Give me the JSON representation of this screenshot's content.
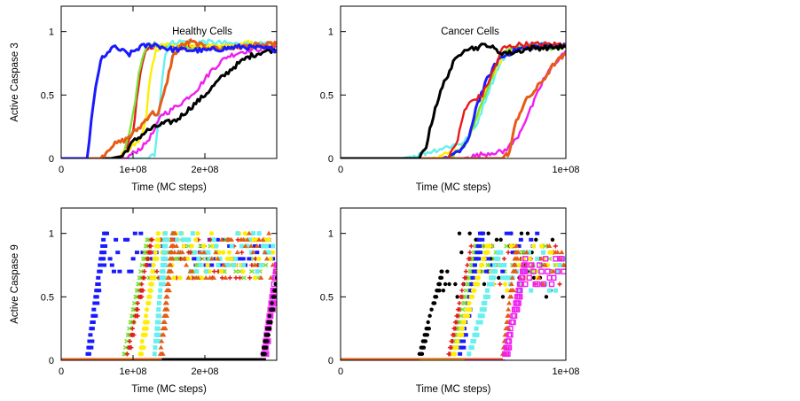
{
  "figure": {
    "description": "Active Caspase 3 and Active Caspase 9 versus time for healthy and cancer cells"
  },
  "chart_data": [
    {
      "id": "healthy-caspase3",
      "type": "line",
      "title": "Healthy Cells",
      "xlabel": "Time (MC steps)",
      "ylabel": "Active Caspase 3",
      "xlim": [
        0,
        300000000
      ],
      "ylim": [
        0,
        1.2
      ],
      "xticks": [
        {
          "value": 0,
          "label": "0"
        },
        {
          "value": 100000000,
          "label": "1e+08"
        },
        {
          "value": 200000000,
          "label": "2e+08"
        }
      ],
      "yticks": [
        {
          "value": 0,
          "label": "0"
        },
        {
          "value": 0.5,
          "label": "0.5"
        },
        {
          "value": 1,
          "label": "1"
        }
      ],
      "grid": false,
      "series": [
        {
          "name": "red",
          "color": "#e8191b",
          "x": [
            0,
            0.85,
            0.92,
            1.0,
            1.05,
            1.1,
            1.15,
            1.2,
            1.3,
            1.5,
            2.0,
            2.5,
            3.0
          ],
          "y": [
            0,
            0,
            0.1,
            0.2,
            0.45,
            0.65,
            0.8,
            0.87,
            0.88,
            0.87,
            0.88,
            0.89,
            0.9
          ]
        },
        {
          "name": "green",
          "color": "#7fe03a",
          "x": [
            0,
            0.82,
            0.9,
            0.97,
            1.03,
            1.08,
            1.13,
            1.2,
            1.3,
            1.6,
            2.0,
            2.5,
            3.0
          ],
          "y": [
            0,
            0,
            0.1,
            0.25,
            0.45,
            0.65,
            0.8,
            0.88,
            0.9,
            0.87,
            0.87,
            0.88,
            0.9
          ]
        },
        {
          "name": "yellow",
          "color": "#ffee00",
          "x": [
            0,
            0.75,
            0.9,
            1.1,
            1.18,
            1.22,
            1.27,
            1.32,
            1.4,
            1.7,
            2.2,
            2.6,
            3.0
          ],
          "y": [
            0,
            0,
            0.05,
            0.15,
            0.3,
            0.55,
            0.75,
            0.85,
            0.9,
            0.9,
            0.88,
            0.91,
            0.88
          ]
        },
        {
          "name": "cyan",
          "color": "#66f0f0",
          "x": [
            0,
            0.85,
            1.2,
            1.3,
            1.35,
            1.4,
            1.45,
            1.5,
            1.6,
            2.0,
            2.5,
            3.0
          ],
          "y": [
            0,
            0,
            0,
            0.03,
            0.3,
            0.6,
            0.82,
            0.9,
            0.92,
            0.92,
            0.9,
            0.9
          ]
        },
        {
          "name": "magenta",
          "color": "#f01ef0",
          "x": [
            0,
            0.9,
            1.15,
            1.3,
            1.4,
            1.5,
            1.7,
            1.9,
            2.1,
            2.3,
            2.5,
            2.7,
            3.0
          ],
          "y": [
            0,
            0,
            0.1,
            0.22,
            0.35,
            0.37,
            0.45,
            0.55,
            0.7,
            0.8,
            0.84,
            0.86,
            0.88
          ]
        },
        {
          "name": "black",
          "color": "#000000",
          "x": [
            0,
            0.7,
            0.85,
            1.0,
            1.2,
            1.4,
            1.6,
            1.8,
            2.0,
            2.2,
            2.4,
            2.6,
            2.8,
            3.0
          ],
          "y": [
            0,
            0,
            0.02,
            0.13,
            0.22,
            0.27,
            0.3,
            0.4,
            0.5,
            0.62,
            0.72,
            0.8,
            0.84,
            0.86
          ]
        },
        {
          "name": "orange",
          "color": "#e65c17",
          "x": [
            0,
            0.55,
            0.7,
            0.9,
            1.1,
            1.25,
            1.35,
            1.45,
            1.55,
            1.65,
            1.8,
            2.0,
            2.2,
            2.5,
            3.0
          ],
          "y": [
            0,
            0,
            0.1,
            0.15,
            0.25,
            0.36,
            0.35,
            0.55,
            0.8,
            0.88,
            0.92,
            0.88,
            0.86,
            0.88,
            0.9
          ]
        },
        {
          "name": "blue",
          "color": "#1a1aff",
          "x": [
            0,
            0.36,
            0.42,
            0.48,
            0.55,
            0.62,
            0.7,
            0.8,
            0.95,
            1.1,
            1.3,
            1.5,
            2.0,
            2.5,
            3.0
          ],
          "y": [
            0,
            0,
            0.3,
            0.55,
            0.78,
            0.8,
            0.88,
            0.86,
            0.82,
            0.88,
            0.9,
            0.86,
            0.85,
            0.88,
            0.86
          ]
        }
      ]
    },
    {
      "id": "cancer-caspase3",
      "type": "line",
      "title": "Cancer Cells",
      "xlabel": "Time (MC steps)",
      "ylabel": "",
      "xlim": [
        0,
        100000000
      ],
      "ylim": [
        0,
        1.2
      ],
      "xticks": [
        {
          "value": 0,
          "label": "0"
        },
        {
          "value": 100000000,
          "label": "1e+08"
        }
      ],
      "yticks": [
        {
          "value": 0,
          "label": "0"
        },
        {
          "value": 0.5,
          "label": "0.5"
        },
        {
          "value": 1,
          "label": "1"
        }
      ],
      "grid": false,
      "series": [
        {
          "name": "cyan",
          "color": "#66f0f0",
          "x": [
            0,
            0.27,
            0.35,
            0.45,
            0.55,
            0.6,
            0.65,
            0.7,
            0.75,
            0.85,
            1.0
          ],
          "y": [
            0,
            0,
            0.03,
            0.08,
            0.13,
            0.25,
            0.5,
            0.72,
            0.86,
            0.9,
            0.9
          ]
        },
        {
          "name": "yellow",
          "color": "#ffee00",
          "x": [
            0,
            0.4,
            0.5,
            0.55,
            0.6,
            0.65,
            0.7,
            0.75,
            0.85,
            1.0
          ],
          "y": [
            0,
            0,
            0.05,
            0.1,
            0.3,
            0.55,
            0.75,
            0.85,
            0.88,
            0.87
          ]
        },
        {
          "name": "green",
          "color": "#7fe03a",
          "x": [
            0,
            0.48,
            0.55,
            0.6,
            0.65,
            0.7,
            0.75,
            0.85,
            1.0
          ],
          "y": [
            0,
            0,
            0.1,
            0.3,
            0.55,
            0.78,
            0.88,
            0.88,
            0.87
          ]
        },
        {
          "name": "blue",
          "color": "#1a1aff",
          "x": [
            0,
            0.45,
            0.52,
            0.57,
            0.6,
            0.65,
            0.7,
            0.78,
            0.85,
            1.0
          ],
          "y": [
            0,
            0,
            0.04,
            0.15,
            0.4,
            0.62,
            0.78,
            0.86,
            0.88,
            0.9
          ]
        },
        {
          "name": "red",
          "color": "#e8191b",
          "x": [
            0,
            0.48,
            0.52,
            0.55,
            0.58,
            0.63,
            0.68,
            0.72,
            0.8,
            1.0
          ],
          "y": [
            0,
            0,
            0.15,
            0.38,
            0.45,
            0.5,
            0.7,
            0.87,
            0.9,
            0.9
          ]
        },
        {
          "name": "magenta",
          "color": "#f01ef0",
          "x": [
            0,
            0.54,
            0.68,
            0.72,
            0.78,
            0.82,
            0.86,
            0.9,
            0.95,
            1.0
          ],
          "y": [
            0,
            0,
            0.05,
            0.05,
            0.15,
            0.3,
            0.45,
            0.62,
            0.75,
            0.85
          ]
        },
        {
          "name": "orange",
          "color": "#e65c17",
          "x": [
            0,
            0.72,
            0.75,
            0.78,
            0.82,
            0.86,
            0.9,
            0.95,
            1.0
          ],
          "y": [
            0,
            0,
            0.05,
            0.3,
            0.45,
            0.53,
            0.62,
            0.75,
            0.82
          ]
        },
        {
          "name": "black",
          "color": "#000000",
          "x": [
            0,
            0.35,
            0.38,
            0.42,
            0.46,
            0.5,
            0.55,
            0.6,
            0.65,
            0.7,
            0.75,
            0.85,
            1.0
          ],
          "y": [
            0,
            0,
            0.1,
            0.4,
            0.6,
            0.75,
            0.87,
            0.87,
            0.9,
            0.84,
            0.83,
            0.87,
            0.88
          ]
        }
      ]
    },
    {
      "id": "healthy-caspase9",
      "type": "scatter",
      "title": "",
      "xlabel": "Time (MC steps)",
      "ylabel": "Active Caspase 9",
      "xlim": [
        0,
        300000000
      ],
      "ylim": [
        0,
        1.2
      ],
      "xticks": [
        {
          "value": 0,
          "label": "0"
        },
        {
          "value": 100000000,
          "label": "1e+08"
        },
        {
          "value": 200000000,
          "label": "2e+08"
        }
      ],
      "yticks": [
        {
          "value": 0,
          "label": "0"
        },
        {
          "value": 0.5,
          "label": "0.5"
        },
        {
          "value": 1,
          "label": "1"
        }
      ],
      "grid": false,
      "level_step": 0.05,
      "series": [
        {
          "name": "blue",
          "color": "#1a1aff",
          "marker": "square",
          "onset": 0.37,
          "rise_end": 0.6,
          "plateau_x": [
            0.6,
            1.35
          ],
          "plateau_levels": [
            0.7,
            1.0
          ],
          "later_x": [
            1.3,
            3.0
          ],
          "later_levels": [
            0.75,
            0.95
          ]
        },
        {
          "name": "green",
          "color": "#7fe03a",
          "marker": "cross",
          "onset": 0.88,
          "rise_end": 1.2,
          "plateau_x": [
            1.2,
            2.9
          ],
          "plateau_levels": [
            0.65,
            0.95
          ]
        },
        {
          "name": "red",
          "color": "#e8191b",
          "marker": "plus",
          "onset": 0.92,
          "rise_end": 1.25,
          "plateau_x": [
            1.25,
            2.9
          ],
          "plateau_levels": [
            0.65,
            0.95
          ]
        },
        {
          "name": "yellow",
          "color": "#ffee00",
          "marker": "circle",
          "onset": 1.1,
          "rise_end": 1.35,
          "plateau_x": [
            1.35,
            3.0
          ],
          "plateau_levels": [
            0.65,
            1.0
          ]
        },
        {
          "name": "cyan",
          "color": "#66f0f0",
          "marker": "square-filled",
          "onset": 1.3,
          "rise_end": 1.45,
          "plateau_x": [
            1.45,
            3.0
          ],
          "plateau_levels": [
            0.7,
            1.0
          ]
        },
        {
          "name": "orange",
          "color": "#e65c17",
          "marker": "triangle",
          "onset": 1.38,
          "rise_end": 1.55,
          "plateau_x": [
            1.55,
            3.0
          ],
          "plateau_levels": [
            0.65,
            1.0
          ]
        },
        {
          "name": "magenta",
          "color": "#f01ef0",
          "marker": "square-open",
          "onset": 2.82,
          "rise_end": 3.0,
          "plateau_x": [
            3.0,
            3.0
          ],
          "plateau_levels": [
            0.7,
            0.75
          ]
        },
        {
          "name": "black",
          "color": "#000000",
          "marker": "dot",
          "onset": 2.8,
          "rise_end": 3.0,
          "plateau_x": [
            3.0,
            3.0
          ],
          "plateau_levels": [
            0.55,
            0.65
          ]
        }
      ]
    },
    {
      "id": "cancer-caspase9",
      "type": "scatter",
      "title": "",
      "xlabel": "Time (MC steps)",
      "ylabel": "",
      "xlim": [
        0,
        100000000
      ],
      "ylim": [
        0,
        1.2
      ],
      "xticks": [
        {
          "value": 0,
          "label": "0"
        },
        {
          "value": 100000000,
          "label": "1e+08"
        }
      ],
      "yticks": [
        {
          "value": 0,
          "label": "0"
        },
        {
          "value": 0.5,
          "label": "0.5"
        },
        {
          "value": 1,
          "label": "1"
        }
      ],
      "grid": false,
      "level_step": 0.05,
      "series": [
        {
          "name": "black",
          "color": "#000000",
          "marker": "dot",
          "onset": 0.35,
          "rise_end": 0.45,
          "plateau_x": [
            0.43,
            0.5
          ],
          "plateau_levels": [
            0.55,
            0.7
          ],
          "later_x": [
            0.5,
            0.95
          ],
          "later_levels": [
            0.5,
            1.0
          ]
        },
        {
          "name": "red",
          "color": "#e8191b",
          "marker": "plus",
          "onset": 0.48,
          "rise_end": 0.58,
          "plateau_x": [
            0.58,
            1.0
          ],
          "plateau_levels": [
            0.6,
            0.9
          ]
        },
        {
          "name": "green",
          "color": "#7fe03a",
          "marker": "cross",
          "onset": 0.5,
          "rise_end": 0.6,
          "plateau_x": [
            0.6,
            1.0
          ],
          "plateau_levels": [
            0.65,
            0.9
          ]
        },
        {
          "name": "blue",
          "color": "#1a1aff",
          "marker": "square",
          "onset": 0.53,
          "rise_end": 0.62,
          "plateau_x": [
            0.62,
            0.9
          ],
          "plateau_levels": [
            0.7,
            1.0
          ]
        },
        {
          "name": "yellow",
          "color": "#ffee00",
          "marker": "circle",
          "onset": 0.5,
          "rise_end": 0.65,
          "plateau_x": [
            0.65,
            1.0
          ],
          "plateau_levels": [
            0.55,
            0.9
          ]
        },
        {
          "name": "cyan",
          "color": "#66f0f0",
          "marker": "square-filled",
          "onset": 0.57,
          "rise_end": 0.7,
          "plateau_x": [
            0.7,
            1.0
          ],
          "plateau_levels": [
            0.55,
            0.85
          ]
        },
        {
          "name": "orange",
          "color": "#e65c17",
          "marker": "triangle",
          "onset": 0.72,
          "rise_end": 0.78,
          "plateau_x": [
            0.78,
            1.0
          ],
          "plateau_levels": [
            0.6,
            0.9
          ]
        },
        {
          "name": "magenta",
          "color": "#f01ef0",
          "marker": "square-open",
          "onset": 0.73,
          "rise_end": 0.82,
          "plateau_x": [
            0.82,
            1.0
          ],
          "plateau_levels": [
            0.6,
            0.8
          ]
        }
      ]
    }
  ]
}
